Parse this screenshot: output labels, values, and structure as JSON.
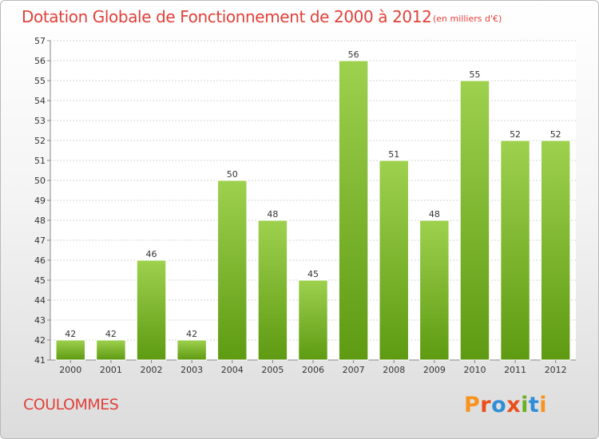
{
  "header": {
    "title": "Dotation Globale de Fonctionnement de 2000 à 2012",
    "subtitle": "(en milliers d'€)"
  },
  "footer": {
    "commune": "COULOMMES",
    "logo_text": "Proxiti"
  },
  "colors": {
    "title": "#e0413a",
    "bar_light": "#9ed14e",
    "bar_dark": "#5e9a12",
    "logo_letters": [
      "#f7931e",
      "#e94e1b",
      "#2f8fd6",
      "#e94e1b",
      "#6ab023",
      "#2f8fd6",
      "#f7931e"
    ]
  },
  "chart_data": {
    "type": "bar",
    "title": "Dotation Globale de Fonctionnement de 2000 à 2012",
    "subtitle": "(en milliers d'€)",
    "categories": [
      "2000",
      "2001",
      "2002",
      "2003",
      "2004",
      "2005",
      "2006",
      "2007",
      "2008",
      "2009",
      "2010",
      "2011",
      "2012"
    ],
    "values": [
      42,
      42,
      46,
      42,
      50,
      48,
      45,
      56,
      51,
      48,
      55,
      52,
      52
    ],
    "ylim": [
      41,
      57
    ],
    "yticks": [
      41,
      42,
      43,
      44,
      45,
      46,
      47,
      48,
      49,
      50,
      51,
      52,
      53,
      54,
      55,
      56,
      57
    ],
    "grid": true,
    "legend": "none"
  }
}
